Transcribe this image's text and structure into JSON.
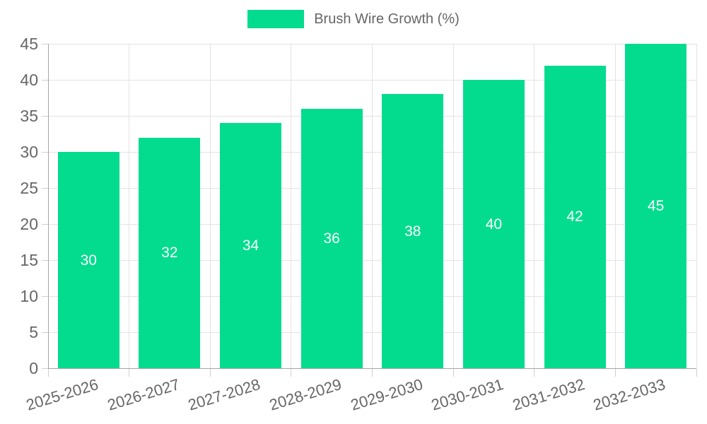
{
  "legend": {
    "label": "Brush Wire Growth (%)"
  },
  "chart_data": {
    "type": "bar",
    "title": "",
    "categories": [
      "2025-2026",
      "2026-2027",
      "2027-2028",
      "2028-2029",
      "2029-2030",
      "2030-2031",
      "2031-2032",
      "2032-2033"
    ],
    "series": [
      {
        "name": "Brush Wire Growth (%)",
        "values": [
          30,
          32,
          34,
          36,
          38,
          40,
          42,
          45
        ]
      }
    ],
    "ylim": [
      0,
      45
    ],
    "y_ticks": [
      0,
      5,
      10,
      15,
      20,
      25,
      30,
      35,
      40,
      45
    ],
    "grid": true,
    "legend_position": "top",
    "xlabel": "",
    "ylabel": "",
    "x_label_rotation_deg": -17,
    "colors": {
      "bar": "#03dc8f",
      "value_label": "#ffffff",
      "grid_line": "#e3e3e3",
      "axis_line": "#a6a6a6",
      "tick_mark": "#cfcfcf",
      "tick_label": "#666666",
      "background": "#ffffff"
    }
  }
}
